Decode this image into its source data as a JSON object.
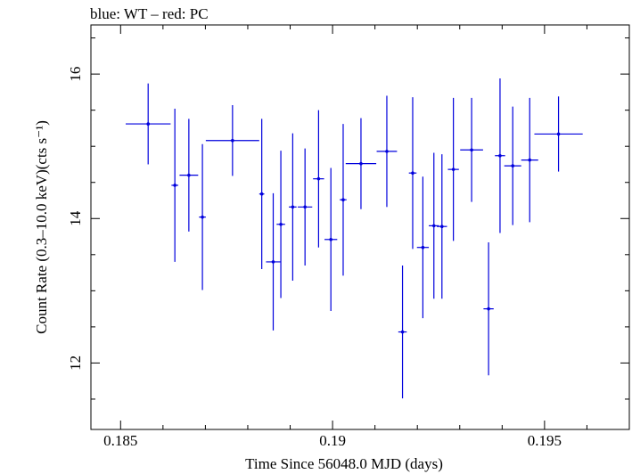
{
  "chart_data": {
    "type": "scatter",
    "title": "blue: WT – red: PC",
    "xlabel": "Time Since 56048.0 MJD (days)",
    "ylabel": "Count Rate (0.3–10.0 keV)(cts s⁻¹)",
    "xlim": [
      0.1843,
      0.197
    ],
    "ylim": [
      11.08,
      16.68
    ],
    "xticks": [
      0.185,
      0.19,
      0.195
    ],
    "xtick_labels": [
      "0.185",
      "0.19",
      "0.195"
    ],
    "yticks": [
      12,
      14,
      16
    ],
    "ytick_labels": [
      "12",
      "14",
      "16"
    ],
    "grid": false,
    "series": [
      {
        "color": "#0000dd",
        "points": [
          {
            "x": 0.18565,
            "y": 15.31,
            "xerr": 0.00053,
            "yerr": 0.56
          },
          {
            "x": 0.18628,
            "y": 14.46,
            "xerr": 8e-05,
            "yerr": 1.06
          },
          {
            "x": 0.18661,
            "y": 14.6,
            "xerr": 0.00022,
            "yerr": 0.78
          },
          {
            "x": 0.18693,
            "y": 14.02,
            "xerr": 8e-05,
            "yerr": 1.01
          },
          {
            "x": 0.18764,
            "y": 15.08,
            "xerr": 0.00063,
            "yerr": 0.49
          },
          {
            "x": 0.18833,
            "y": 14.34,
            "xerr": 6e-05,
            "yerr": 1.04
          },
          {
            "x": 0.1886,
            "y": 13.4,
            "xerr": 0.00017,
            "yerr": 0.95
          },
          {
            "x": 0.18878,
            "y": 13.92,
            "xerr": 0.0001,
            "yerr": 1.02
          },
          {
            "x": 0.18906,
            "y": 14.16,
            "xerr": 9e-05,
            "yerr": 1.02
          },
          {
            "x": 0.18935,
            "y": 14.16,
            "xerr": 0.00017,
            "yerr": 0.81
          },
          {
            "x": 0.18967,
            "y": 14.55,
            "xerr": 0.00013,
            "yerr": 0.95
          },
          {
            "x": 0.18996,
            "y": 13.71,
            "xerr": 0.00015,
            "yerr": 0.99
          },
          {
            "x": 0.19025,
            "y": 14.26,
            "xerr": 8e-05,
            "yerr": 1.05
          },
          {
            "x": 0.19067,
            "y": 14.76,
            "xerr": 0.00036,
            "yerr": 0.63
          },
          {
            "x": 0.19128,
            "y": 14.93,
            "xerr": 0.00024,
            "yerr": 0.77
          },
          {
            "x": 0.19165,
            "y": 12.43,
            "xerr": 0.0001,
            "yerr": 0.92
          },
          {
            "x": 0.19189,
            "y": 14.63,
            "xerr": 9e-05,
            "yerr": 1.05
          },
          {
            "x": 0.19213,
            "y": 13.6,
            "xerr": 0.00014,
            "yerr": 0.98
          },
          {
            "x": 0.19239,
            "y": 13.9,
            "xerr": 0.00012,
            "yerr": 1.01
          },
          {
            "x": 0.19258,
            "y": 13.89,
            "xerr": 0.00012,
            "yerr": 1.0
          },
          {
            "x": 0.19285,
            "y": 14.68,
            "xerr": 0.00013,
            "yerr": 0.99
          },
          {
            "x": 0.19328,
            "y": 14.95,
            "xerr": 0.00027,
            "yerr": 0.72
          },
          {
            "x": 0.19368,
            "y": 12.75,
            "xerr": 0.00012,
            "yerr": 0.92
          },
          {
            "x": 0.19395,
            "y": 14.87,
            "xerr": 0.00012,
            "yerr": 1.07
          },
          {
            "x": 0.19425,
            "y": 14.73,
            "xerr": 0.0002,
            "yerr": 0.82
          },
          {
            "x": 0.19465,
            "y": 14.81,
            "xerr": 0.0002,
            "yerr": 0.86
          },
          {
            "x": 0.19533,
            "y": 15.17,
            "xerr": 0.00057,
            "yerr": 0.52
          }
        ]
      }
    ]
  }
}
